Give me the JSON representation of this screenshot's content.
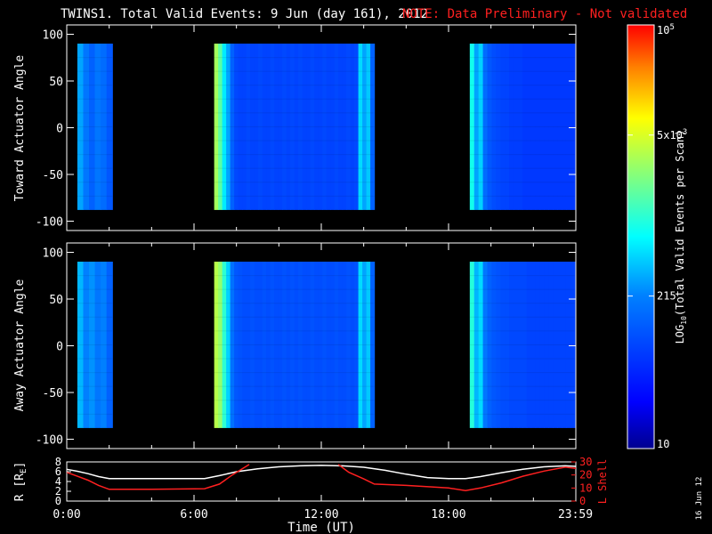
{
  "title": "TWINS1. Total Valid Events:  9 Jun (day 161), 2012",
  "note": "NOTE: Data Preliminary - Not validated",
  "colors": {
    "note": "#ff2020",
    "lshell": "#ff2020",
    "r": "#ffffff",
    "axis": "#ffffff"
  },
  "footer_date": "16 Jun 12",
  "chart_data": [
    {
      "type": "heatmap",
      "panel": "toward",
      "ylabel": "Toward Actuator Angle",
      "yticks": [
        "100",
        "50",
        "0",
        "-50",
        "-100"
      ],
      "ylim": [
        -110,
        110
      ],
      "xlim": [
        0,
        24
      ],
      "data_y_range": [
        -88,
        90
      ],
      "segments": [
        {
          "x": [
            0.5,
            2.15
          ],
          "level": [
            0.4,
            0.34,
            0.3,
            0.34,
            0.32,
            0.28
          ]
        },
        {
          "x": [
            6.95,
            14.5
          ],
          "level": [
            0.68,
            0.6,
            0.48,
            0.4,
            0.3,
            0.25,
            0.24,
            0.24,
            0.25,
            0.24,
            0.24,
            0.25,
            0.24,
            0.24,
            0.25,
            0.24,
            0.24,
            0.25,
            0.24,
            0.25,
            0.24,
            0.25,
            0.24,
            0.24,
            0.25,
            0.24,
            0.24,
            0.25,
            0.24,
            0.24,
            0.25,
            0.24,
            0.24,
            0.25,
            0.24,
            0.25,
            0.46,
            0.4,
            0.44,
            0.3
          ]
        },
        {
          "x": [
            19.0,
            23.95
          ],
          "level": [
            0.52,
            0.4,
            0.45,
            0.32,
            0.28,
            0.26,
            0.25,
            0.24,
            0.24,
            0.23,
            0.23,
            0.23,
            0.22,
            0.22,
            0.22,
            0.22,
            0.22,
            0.22,
            0.22,
            0.22,
            0.22,
            0.22,
            0.22,
            0.22
          ]
        }
      ]
    },
    {
      "type": "heatmap",
      "panel": "away",
      "ylabel": "Away Actuator Angle",
      "yticks": [
        "100",
        "50",
        "0",
        "-50",
        "-100"
      ],
      "ylim": [
        -110,
        110
      ],
      "xlim": [
        0,
        24
      ],
      "data_y_range": [
        -88,
        90
      ],
      "segments": [
        {
          "x": [
            0.5,
            2.15
          ],
          "level": [
            0.42,
            0.36,
            0.38,
            0.34,
            0.36,
            0.3
          ]
        },
        {
          "x": [
            6.95,
            14.5
          ],
          "level": [
            0.7,
            0.66,
            0.55,
            0.45,
            0.33,
            0.28,
            0.27,
            0.26,
            0.26,
            0.27,
            0.26,
            0.26,
            0.27,
            0.26,
            0.27,
            0.26,
            0.26,
            0.27,
            0.26,
            0.27,
            0.26,
            0.27,
            0.26,
            0.26,
            0.27,
            0.26,
            0.26,
            0.27,
            0.26,
            0.26,
            0.27,
            0.26,
            0.26,
            0.27,
            0.26,
            0.27,
            0.46,
            0.4,
            0.44,
            0.3
          ]
        },
        {
          "x": [
            19.0,
            23.95
          ],
          "level": [
            0.54,
            0.42,
            0.46,
            0.34,
            0.3,
            0.28,
            0.27,
            0.26,
            0.26,
            0.25,
            0.25,
            0.25,
            0.25,
            0.24,
            0.24,
            0.24,
            0.24,
            0.24,
            0.24,
            0.24,
            0.24,
            0.24,
            0.24,
            0.24
          ]
        }
      ]
    },
    {
      "type": "line",
      "panel": "orbit",
      "xlabel": "Time (UT)",
      "xticks": [
        "0:00",
        "6:00",
        "12:00",
        "18:00",
        "23:59"
      ],
      "xtick_values": [
        0,
        6,
        12,
        18,
        23.98
      ],
      "xlim": [
        0,
        24
      ],
      "ylabel_left": "R [RE]",
      "yticks_left": [
        "8",
        "6",
        "4",
        "2",
        "0"
      ],
      "ylim_left": [
        0,
        8
      ],
      "ylabel_right": "L Shell",
      "yticks_right": [
        "30",
        "20",
        "10",
        "0"
      ],
      "ylim_right": [
        0,
        30
      ],
      "series": [
        {
          "name": "R [RE]",
          "axis": "left",
          "x": [
            0,
            0.5,
            1,
            1.5,
            2,
            4,
            6.5,
            7.2,
            8,
            9,
            10,
            11,
            12,
            13,
            14,
            15,
            16,
            17,
            18,
            18.8,
            19.5,
            20.5,
            21.5,
            22.5,
            23.5,
            24
          ],
          "y": [
            6.5,
            6.1,
            5.6,
            5.0,
            4.6,
            4.6,
            4.6,
            5.2,
            6.0,
            6.6,
            7.0,
            7.2,
            7.3,
            7.2,
            6.9,
            6.3,
            5.5,
            4.8,
            4.6,
            4.6,
            5.0,
            5.8,
            6.5,
            7.0,
            7.2,
            7.1
          ]
        },
        {
          "name": "L Shell",
          "axis": "right",
          "x": [
            0,
            0.5,
            1,
            1.5,
            2,
            4,
            6.5,
            7.2,
            7.8,
            8.6,
            9.0,
            12.3,
            12.8,
            13.3,
            14.0,
            14.5,
            16,
            18,
            18.8,
            19.5,
            20.5,
            21.5,
            22.5,
            23.5,
            24
          ],
          "y": [
            22,
            19,
            16,
            12,
            9,
            9,
            9.5,
            13,
            20,
            28,
            null,
            null,
            28,
            22,
            17,
            13,
            12,
            10,
            8,
            10,
            14,
            19,
            23,
            26,
            25
          ]
        }
      ]
    }
  ],
  "colorbar": {
    "label": "LOG10(Total Valid Events per Scan)",
    "label_main": "LOG",
    "label_sub": "10",
    "label_rest": "(Total Valid Events per Scan)",
    "ticks": [
      {
        "text": "10",
        "sup": "5",
        "level": 1.0
      },
      {
        "text": "5x10",
        "sup": "3",
        "level": 0.74
      },
      {
        "text": "215",
        "sup": "",
        "level": 0.36
      },
      {
        "text": "10",
        "sup": "",
        "level": 0.0
      }
    ]
  }
}
